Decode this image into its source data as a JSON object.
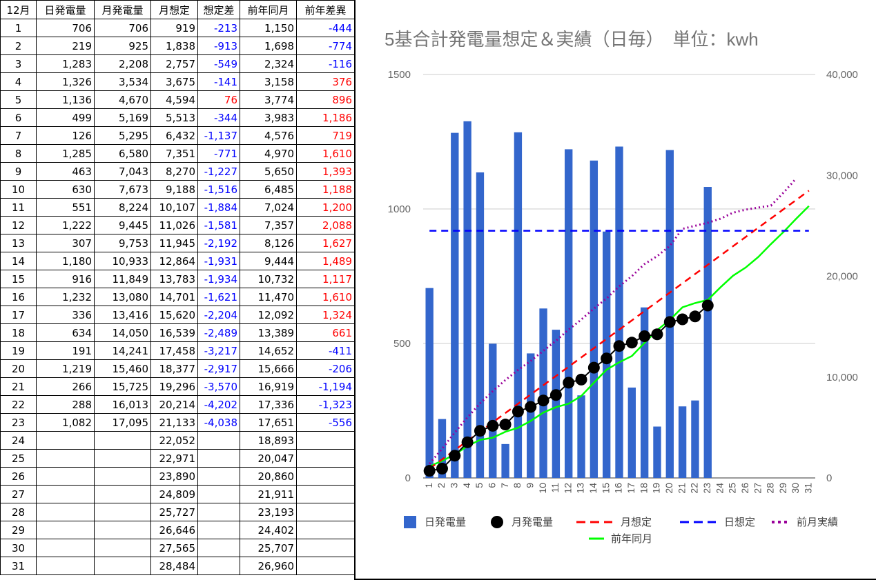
{
  "table": {
    "headers": [
      "12月",
      "日発電量",
      "月発電量",
      "月想定",
      "想定差",
      "前年同月",
      "前年差異"
    ],
    "rows": [
      [
        "1",
        "706",
        "706",
        "919",
        "-213",
        "1,150",
        "-444"
      ],
      [
        "2",
        "219",
        "925",
        "1,838",
        "-913",
        "1,698",
        "-774"
      ],
      [
        "3",
        "1,283",
        "2,208",
        "2,757",
        "-549",
        "2,324",
        "-116"
      ],
      [
        "4",
        "1,326",
        "3,534",
        "3,675",
        "-141",
        "3,158",
        "376"
      ],
      [
        "5",
        "1,136",
        "4,670",
        "4,594",
        "76",
        "3,774",
        "896"
      ],
      [
        "6",
        "499",
        "5,169",
        "5,513",
        "-344",
        "3,983",
        "1,186"
      ],
      [
        "7",
        "126",
        "5,295",
        "6,432",
        "-1,137",
        "4,576",
        "719"
      ],
      [
        "8",
        "1,285",
        "6,580",
        "7,351",
        "-771",
        "4,970",
        "1,610"
      ],
      [
        "9",
        "463",
        "7,043",
        "8,270",
        "-1,227",
        "5,650",
        "1,393"
      ],
      [
        "10",
        "630",
        "7,673",
        "9,188",
        "-1,516",
        "6,485",
        "1,188"
      ],
      [
        "11",
        "551",
        "8,224",
        "10,107",
        "-1,884",
        "7,024",
        "1,200"
      ],
      [
        "12",
        "1,222",
        "9,445",
        "11,026",
        "-1,581",
        "7,357",
        "2,088"
      ],
      [
        "13",
        "307",
        "9,753",
        "11,945",
        "-2,192",
        "8,126",
        "1,627"
      ],
      [
        "14",
        "1,180",
        "10,933",
        "12,864",
        "-1,931",
        "9,444",
        "1,489"
      ],
      [
        "15",
        "916",
        "11,849",
        "13,783",
        "-1,934",
        "10,732",
        "1,117"
      ],
      [
        "16",
        "1,232",
        "13,080",
        "14,701",
        "-1,621",
        "11,470",
        "1,610"
      ],
      [
        "17",
        "336",
        "13,416",
        "15,620",
        "-2,204",
        "12,092",
        "1,324"
      ],
      [
        "18",
        "634",
        "14,050",
        "16,539",
        "-2,489",
        "13,389",
        "661"
      ],
      [
        "19",
        "191",
        "14,241",
        "17,458",
        "-3,217",
        "14,652",
        "-411"
      ],
      [
        "20",
        "1,219",
        "15,460",
        "18,377",
        "-2,917",
        "15,666",
        "-206"
      ],
      [
        "21",
        "266",
        "15,725",
        "19,296",
        "-3,570",
        "16,919",
        "-1,194"
      ],
      [
        "22",
        "288",
        "16,013",
        "20,214",
        "-4,202",
        "17,336",
        "-1,323"
      ],
      [
        "23",
        "1,082",
        "17,095",
        "21,133",
        "-4,038",
        "17,651",
        "-556"
      ],
      [
        "24",
        "",
        "",
        "22,052",
        "",
        "18,893",
        ""
      ],
      [
        "25",
        "",
        "",
        "22,971",
        "",
        "20,047",
        ""
      ],
      [
        "26",
        "",
        "",
        "23,890",
        "",
        "20,860",
        ""
      ],
      [
        "27",
        "",
        "",
        "24,809",
        "",
        "21,911",
        ""
      ],
      [
        "28",
        "",
        "",
        "25,727",
        "",
        "23,193",
        ""
      ],
      [
        "29",
        "",
        "",
        "26,646",
        "",
        "24,402",
        ""
      ],
      [
        "30",
        "",
        "",
        "27,565",
        "",
        "25,707",
        ""
      ],
      [
        "31",
        "",
        "",
        "28,484",
        "",
        "26,960",
        ""
      ]
    ]
  },
  "colors": {
    "bar": "#3366cc",
    "monthly_actual": "#000000",
    "monthly_forecast": "#ff0000",
    "daily_forecast": "#0000ff",
    "prev_month": "#990099",
    "prev_year": "#00ff00",
    "negative_text": "#0000ff",
    "positive_text": "#ff0000"
  },
  "chart_data": {
    "type": "bar",
    "title": "5基合計発電量想定＆実績（日毎）　単位：kwh",
    "categories": [
      "1",
      "2",
      "3",
      "4",
      "5",
      "6",
      "7",
      "8",
      "9",
      "10",
      "11",
      "12",
      "13",
      "14",
      "15",
      "16",
      "17",
      "18",
      "19",
      "20",
      "21",
      "22",
      "23",
      "24",
      "25",
      "26",
      "27",
      "28",
      "29",
      "30",
      "31"
    ],
    "y_left": {
      "min": 0,
      "max": 1500,
      "ticks": [
        "0",
        "500",
        "1000",
        "1500"
      ],
      "tick_values": [
        0,
        500,
        1000,
        1500
      ]
    },
    "y_right": {
      "min": 0,
      "max": 40000,
      "ticks": [
        "0",
        "10,000",
        "20,000",
        "30,000",
        "40,000"
      ],
      "tick_values": [
        0,
        10000,
        20000,
        30000,
        40000
      ]
    },
    "grid": true,
    "legend_position": "bottom",
    "series": [
      {
        "name": "日発電量",
        "type": "bar",
        "axis": "left",
        "values": [
          706,
          219,
          1283,
          1326,
          1136,
          499,
          126,
          1285,
          463,
          630,
          551,
          1222,
          307,
          1180,
          916,
          1232,
          336,
          634,
          191,
          1219,
          266,
          288,
          1082,
          null,
          null,
          null,
          null,
          null,
          null,
          null,
          null
        ]
      },
      {
        "name": "月発電量",
        "type": "line-markers",
        "axis": "right",
        "values": [
          706,
          925,
          2208,
          3534,
          4670,
          5169,
          5295,
          6580,
          7043,
          7673,
          8224,
          9445,
          9753,
          10933,
          11849,
          13080,
          13416,
          14050,
          14241,
          15460,
          15725,
          16013,
          17095,
          null,
          null,
          null,
          null,
          null,
          null,
          null,
          null
        ]
      },
      {
        "name": "月想定",
        "type": "dashed-line",
        "axis": "right",
        "values": [
          919,
          1838,
          2757,
          3675,
          4594,
          5513,
          6432,
          7351,
          8270,
          9188,
          10107,
          11026,
          11945,
          12864,
          13783,
          14701,
          15620,
          16539,
          17458,
          18377,
          19296,
          20214,
          21133,
          22052,
          22971,
          23890,
          24809,
          25727,
          26646,
          27565,
          28484
        ]
      },
      {
        "name": "日想定",
        "type": "dashed-line",
        "axis": "left",
        "values": [
          919,
          919,
          919,
          919,
          919,
          919,
          919,
          919,
          919,
          919,
          919,
          919,
          919,
          919,
          919,
          919,
          919,
          919,
          919,
          919,
          919,
          919,
          919,
          919,
          919,
          919,
          919,
          919,
          919,
          919,
          919
        ]
      },
      {
        "name": "前月実績",
        "type": "dotted-line",
        "axis": "right",
        "values": [
          1400,
          2900,
          4500,
          6000,
          7400,
          8600,
          9700,
          10700,
          11600,
          12600,
          13600,
          14700,
          15700,
          16800,
          17800,
          19000,
          20000,
          21200,
          22000,
          23000,
          24700,
          25000,
          25300,
          25700,
          26300,
          26600,
          26800,
          27000,
          28300,
          29700,
          null
        ]
      },
      {
        "name": "前年同月",
        "type": "line",
        "axis": "right",
        "values": [
          1150,
          1698,
          2324,
          3158,
          3774,
          3983,
          4576,
          4970,
          5650,
          6485,
          7024,
          7357,
          8126,
          9444,
          10732,
          11470,
          12092,
          13389,
          14652,
          15666,
          16919,
          17336,
          17651,
          18893,
          20047,
          20860,
          21911,
          23193,
          24402,
          25707,
          26960
        ]
      }
    ]
  }
}
